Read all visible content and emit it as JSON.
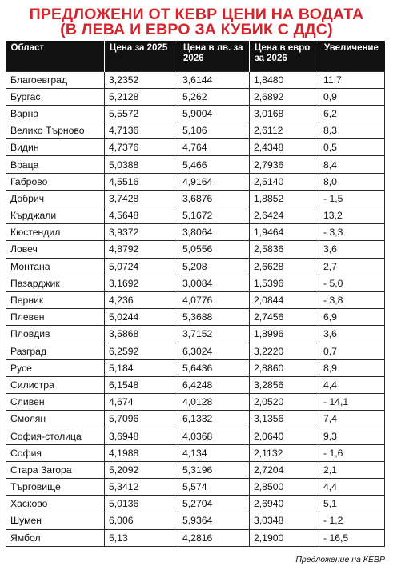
{
  "title": {
    "line1": "ПРЕДЛОЖЕНИ ОТ КЕВР ЦЕНИ НА ВОДАТА",
    "line2": "(В ЛЕВА И ЕВРО ЗА КУБИК С ДДС)",
    "color": "#d4232a"
  },
  "table": {
    "headers": [
      "Област",
      "Цена за 2025",
      "Цена в лв. за 2026",
      "Цена в евро за 2026",
      "Увеличение"
    ],
    "rows": [
      [
        "Благоевград",
        "3,2352",
        "3,6144",
        "1,8480",
        "11,7"
      ],
      [
        "Бургас",
        "5,2128",
        "5,262",
        "2,6892",
        "0,9"
      ],
      [
        "Варна",
        "5,5572",
        "5,9004",
        "3,0168",
        "6,2"
      ],
      [
        "Велико Търново",
        "4,7136",
        "5,106",
        "2,6112",
        "8,3"
      ],
      [
        "Видин",
        "4,7376",
        "4,764",
        "2,4348",
        "0,5"
      ],
      [
        "Враца",
        "5,0388",
        "5,466",
        "2,7936",
        "8,4"
      ],
      [
        "Габрово",
        "4,5516",
        "4,9164",
        "2,5140",
        "8,0"
      ],
      [
        "Добрич",
        "3,7428",
        "3,6876",
        "1,8852",
        "- 1,5"
      ],
      [
        "Кърджали",
        "4,5648",
        "5,1672",
        "2,6424",
        "13,2"
      ],
      [
        "Кюстендил",
        "3,9372",
        "3,8064",
        "1,9464",
        "- 3,3"
      ],
      [
        "Ловеч",
        "4,8792",
        "5,0556",
        "2,5836",
        "3,6"
      ],
      [
        "Монтана",
        "5,0724",
        "5,208",
        "2,6628",
        "2,7"
      ],
      [
        "Пазарджик",
        "3,1692",
        "3,0084",
        "1,5396",
        "- 5,0"
      ],
      [
        "Перник",
        "4,236",
        "4,0776",
        "2,0844",
        "- 3,8"
      ],
      [
        "Плевен",
        "5,0244",
        "5,3688",
        "2,7456",
        "6,9"
      ],
      [
        "Пловдив",
        "3,5868",
        "3,7152",
        "1,8996",
        "3,6"
      ],
      [
        "Разград",
        "6,2592",
        "6,3024",
        "3,2220",
        "0,7"
      ],
      [
        "Русе",
        "5,184",
        "5,6436",
        "2,8860",
        "8,9"
      ],
      [
        "Силистра",
        "6,1548",
        "6,4248",
        "3,2856",
        "4,4"
      ],
      [
        "Сливен",
        "4,674",
        "4,0128",
        "2,0520",
        "- 14,1"
      ],
      [
        "Смолян",
        "5,7096",
        "6,1332",
        "3,1356",
        "7,4"
      ],
      [
        "София-столица",
        "3,6948",
        "4,0368",
        "2,0640",
        "9,3"
      ],
      [
        "София",
        "4,1988",
        "4,134",
        "2,1132",
        "- 1,6"
      ],
      [
        "Стара Загора",
        "5,2092",
        "5,3196",
        "2,7204",
        "2,1"
      ],
      [
        "Търговище",
        "5,3412",
        "5,574",
        "2,8500",
        "4,4"
      ],
      [
        "Хасково",
        "5,0136",
        "5,2704",
        "2,6940",
        "5,1"
      ],
      [
        "Шумен",
        "6,006",
        "5,9364",
        "3,0348",
        "- 1,2"
      ],
      [
        "Ямбол",
        "5,13",
        "4,2816",
        "2,1900",
        "- 16,5"
      ]
    ]
  },
  "source": "Предложение на КЕВР"
}
